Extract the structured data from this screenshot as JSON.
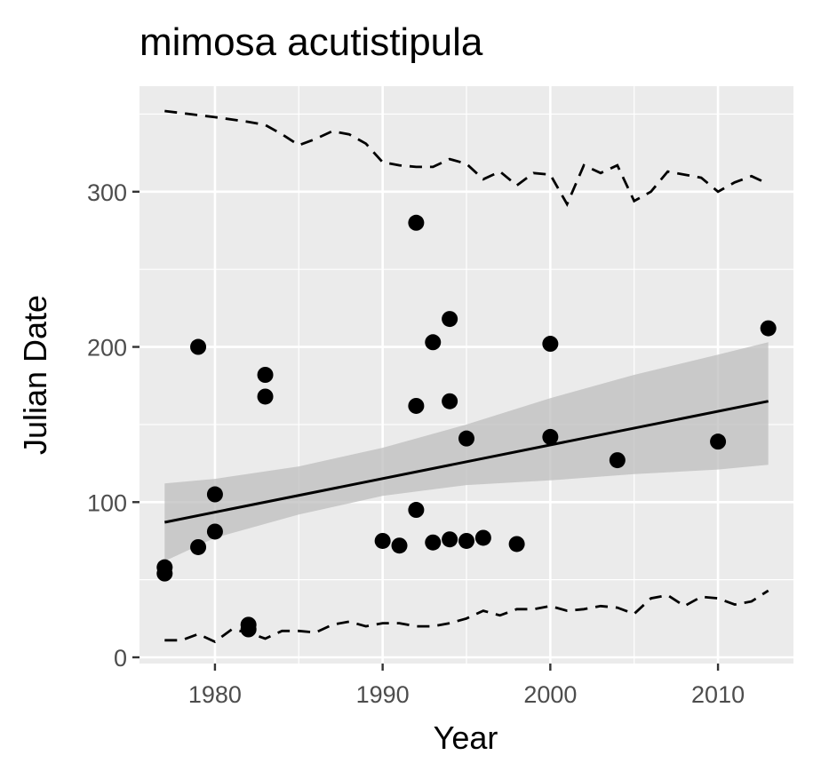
{
  "chart_data": {
    "type": "scatter",
    "title": "mimosa acutistipula",
    "xlabel": "Year",
    "ylabel": "Julian Date",
    "xlim": [
      1975.5,
      2014.5
    ],
    "ylim": [
      -4,
      368
    ],
    "x_major_ticks": [
      1980,
      1990,
      2000,
      2010
    ],
    "x_minor_ticks": [
      1975,
      1985,
      1995,
      2005
    ],
    "y_major_ticks": [
      0,
      100,
      200,
      300
    ],
    "y_minor_ticks": [
      50,
      150,
      250,
      350
    ],
    "grid": true,
    "panel_color": "#ebebeb",
    "point_color": "#000000",
    "ribbon_color": "#bdbdbd",
    "points": [
      {
        "x": 1977,
        "y": 58
      },
      {
        "x": 1977,
        "y": 54
      },
      {
        "x": 1979,
        "y": 200
      },
      {
        "x": 1979,
        "y": 71
      },
      {
        "x": 1980,
        "y": 105
      },
      {
        "x": 1980,
        "y": 81
      },
      {
        "x": 1982,
        "y": 21
      },
      {
        "x": 1982,
        "y": 18
      },
      {
        "x": 1983,
        "y": 182
      },
      {
        "x": 1983,
        "y": 168
      },
      {
        "x": 1990,
        "y": 75
      },
      {
        "x": 1991,
        "y": 72
      },
      {
        "x": 1992,
        "y": 280
      },
      {
        "x": 1992,
        "y": 162
      },
      {
        "x": 1992,
        "y": 95
      },
      {
        "x": 1993,
        "y": 203
      },
      {
        "x": 1993,
        "y": 74
      },
      {
        "x": 1994,
        "y": 218
      },
      {
        "x": 1994,
        "y": 165
      },
      {
        "x": 1994,
        "y": 76
      },
      {
        "x": 1995,
        "y": 141
      },
      {
        "x": 1995,
        "y": 75
      },
      {
        "x": 1996,
        "y": 77
      },
      {
        "x": 1998,
        "y": 73
      },
      {
        "x": 2000,
        "y": 202
      },
      {
        "x": 2000,
        "y": 142
      },
      {
        "x": 2004,
        "y": 127
      },
      {
        "x": 2010,
        "y": 139
      },
      {
        "x": 2013,
        "y": 212
      }
    ],
    "trend_line": {
      "x": [
        1977,
        2013
      ],
      "y": [
        87,
        165
      ]
    },
    "confidence_band": {
      "x": [
        1977,
        1980,
        1985,
        1990,
        1995,
        2000,
        2005,
        2010,
        2013
      ],
      "lower": [
        62,
        77,
        92,
        104,
        111,
        114,
        118,
        121,
        124
      ],
      "upper": [
        112,
        115,
        123,
        135,
        150,
        167,
        182,
        195,
        203
      ]
    },
    "upper_dashed": {
      "x": [
        1977,
        1980,
        1982,
        1983,
        1984,
        1985,
        1986,
        1987,
        1988,
        1989,
        1990,
        1991,
        1992,
        1993,
        1994,
        1995,
        1996,
        1997,
        1998,
        1999,
        2000,
        2001,
        2002,
        2003,
        2004,
        2005,
        2006,
        2007,
        2008,
        2009,
        2010,
        2011,
        2012,
        2013
      ],
      "y": [
        352,
        348,
        345,
        343,
        337,
        330,
        334,
        339,
        337,
        331,
        319,
        317,
        316,
        316,
        321,
        318,
        308,
        313,
        304,
        312,
        311,
        292,
        317,
        312,
        317,
        294,
        300,
        313,
        311,
        309,
        300,
        306,
        310,
        305
      ]
    },
    "lower_dashed": {
      "x": [
        1977,
        1978,
        1979,
        1980,
        1981,
        1982,
        1983,
        1984,
        1985,
        1986,
        1987,
        1988,
        1989,
        1990,
        1991,
        1992,
        1993,
        1994,
        1995,
        1996,
        1997,
        1998,
        1999,
        2000,
        2001,
        2002,
        2003,
        2004,
        2005,
        2006,
        2007,
        2008,
        2009,
        2010,
        2011,
        2012,
        2013
      ],
      "y": [
        11,
        11,
        15,
        10,
        18,
        16,
        12,
        17,
        17,
        16,
        21,
        23,
        20,
        22,
        22,
        20,
        20,
        22,
        25,
        30,
        27,
        31,
        31,
        33,
        30,
        31,
        33,
        32,
        28,
        38,
        40,
        33,
        39,
        38,
        34,
        36,
        43
      ]
    }
  }
}
